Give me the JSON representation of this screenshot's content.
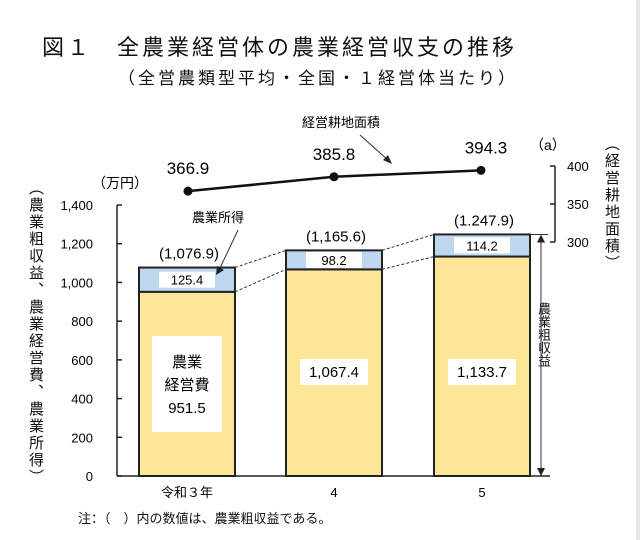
{
  "title": "図１　全農業経営体の農業経営収支の推移",
  "subtitle": "（全営農類型平均・全国・１経営体当たり）",
  "note": "注：（　）内の数値は、農業粗収益である。",
  "chart_data": {
    "type": "bar",
    "stacked": true,
    "categories": [
      "令和３年",
      "4",
      "5"
    ],
    "series": [
      {
        "name": "農業経営費",
        "values": [
          951.5,
          1067.4,
          1133.7
        ],
        "labels": [
          "951.5",
          "1,067.4",
          "1,133.7"
        ],
        "color": "#fde59a"
      },
      {
        "name": "農業所得",
        "values": [
          125.4,
          98.2,
          114.2
        ],
        "labels": [
          "125.4",
          "98.2",
          "114.2"
        ],
        "color": "#bdd7ee"
      }
    ],
    "totals": {
      "name": "農業粗収益",
      "values": [
        1076.9,
        1165.6,
        1247.9
      ],
      "labels": [
        "(1,076.9)",
        "(1,165.6)",
        "(1.247.9)"
      ]
    },
    "expense_box_label": [
      "農業",
      "経営費"
    ],
    "ylabel": "（農業粗収益、農業経営費、農業所得）",
    "yunit": "（万円）",
    "ylim": [
      0,
      1400
    ],
    "yticks": [
      "0",
      "200",
      "400",
      "600",
      "800",
      "1,000",
      "1,200",
      "1,400"
    ],
    "line": {
      "name": "経営耕地面積",
      "values": [
        366.9,
        385.8,
        394.3
      ],
      "labels": [
        "366.9",
        "385.8",
        "394.3"
      ],
      "ylabel": "（経営耕地面積）",
      "yunit": "（a）",
      "ylim": [
        300,
        400
      ],
      "yticks": [
        "300",
        "350",
        "400"
      ]
    },
    "gross_revenue_arrow_label": "農業粗収益",
    "grid": false
  }
}
